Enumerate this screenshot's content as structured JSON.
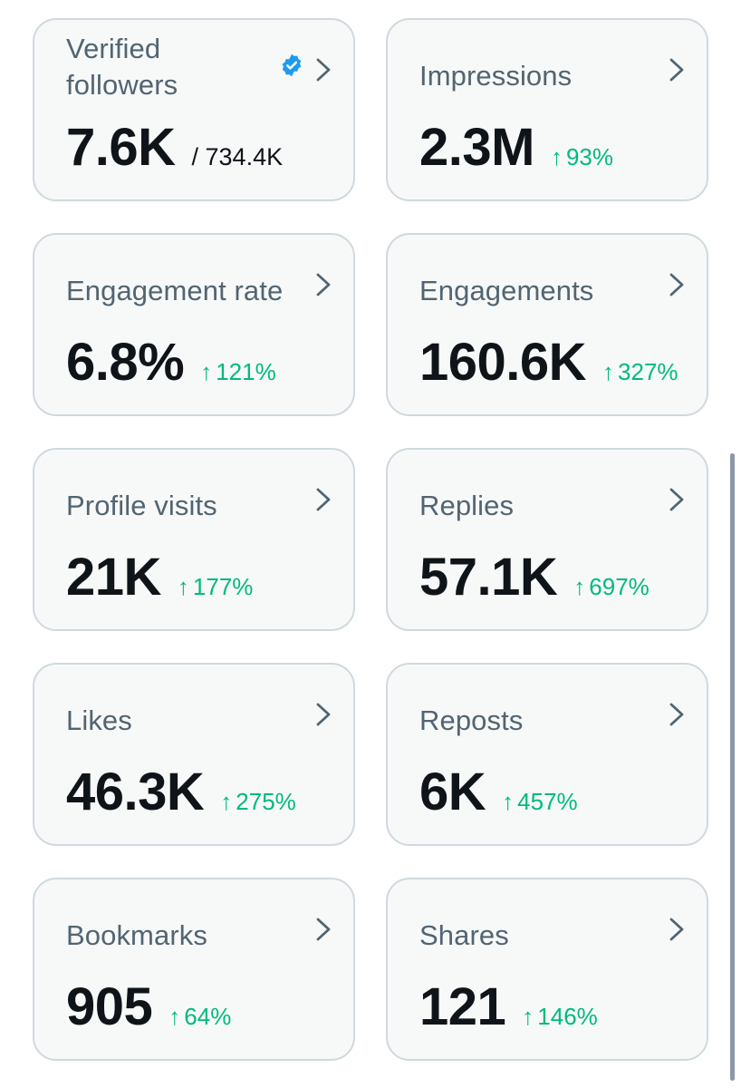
{
  "metrics": [
    {
      "label": "Verified followers",
      "value": "7.6K",
      "total": "/ 734.4K",
      "verified_icon": "verified-badge-icon",
      "chevron_icon": "chevron-right-icon"
    },
    {
      "label": "Impressions",
      "value": "2.3M",
      "change_arrow": "↑",
      "change": "93%",
      "chevron_icon": "chevron-right-icon"
    },
    {
      "label": "Engagement rate",
      "value": "6.8%",
      "change_arrow": "↑",
      "change": "121%",
      "chevron_icon": "chevron-right-icon"
    },
    {
      "label": "Engagements",
      "value": "160.6K",
      "change_arrow": "↑",
      "change": "327%",
      "chevron_icon": "chevron-right-icon"
    },
    {
      "label": "Profile visits",
      "value": "21K",
      "change_arrow": "↑",
      "change": "177%",
      "chevron_icon": "chevron-right-icon"
    },
    {
      "label": "Replies",
      "value": "57.1K",
      "change_arrow": "↑",
      "change": "697%",
      "chevron_icon": "chevron-right-icon"
    },
    {
      "label": "Likes",
      "value": "46.3K",
      "change_arrow": "↑",
      "change": "275%",
      "chevron_icon": "chevron-right-icon"
    },
    {
      "label": "Reposts",
      "value": "6K",
      "change_arrow": "↑",
      "change": "457%",
      "chevron_icon": "chevron-right-icon"
    },
    {
      "label": "Bookmarks",
      "value": "905",
      "change_arrow": "↑",
      "change": "64%",
      "chevron_icon": "chevron-right-icon"
    },
    {
      "label": "Shares",
      "value": "121",
      "change_arrow": "↑",
      "change": "146%",
      "chevron_icon": "chevron-right-icon"
    }
  ],
  "colors": {
    "card_background": "#f7f9f9",
    "card_border": "#cfd9de",
    "label": "#536471",
    "value": "#0f1419",
    "positive_change": "#00ba7c",
    "verified_badge": "#1d9bf0",
    "chevron": "#536471"
  }
}
